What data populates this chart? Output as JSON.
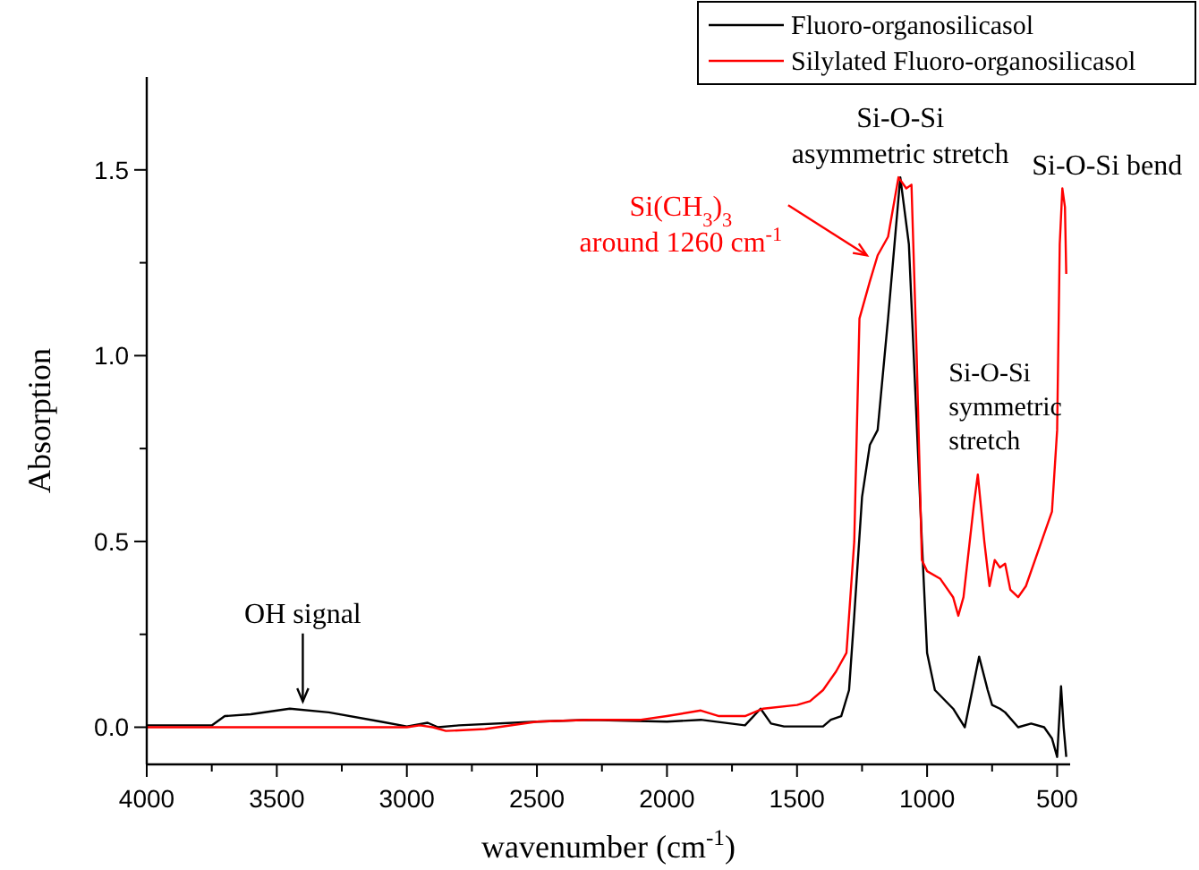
{
  "chart_data": {
    "type": "line",
    "xlabel": "wavenumber (cm$^{-1}$)",
    "ylabel": "Absorption",
    "xlim": [
      4000,
      450
    ],
    "ylim": [
      -0.1,
      1.75
    ],
    "xticks": [
      4000,
      {
        "value": 3750,
        "label": null
      },
      3500,
      {
        "value": 3250,
        "label": null
      },
      3000,
      {
        "value": 2750,
        "label": null
      },
      2500,
      {
        "value": 2250,
        "label": null
      },
      2000,
      {
        "value": 1750,
        "label": null
      },
      1500,
      {
        "value": 1250,
        "label": null
      },
      1000,
      {
        "value": 750,
        "label": null
      },
      500
    ],
    "yticks": [
      {
        "value": 0,
        "label": "0.0"
      },
      {
        "value": 0.25,
        "label": null
      },
      {
        "value": 0.5,
        "label": "0.5"
      },
      {
        "value": 0.75,
        "label": null
      },
      {
        "value": 1,
        "label": "1.0"
      },
      {
        "value": 1.25,
        "label": null
      },
      {
        "value": 1.5,
        "label": "1.5"
      }
    ],
    "legend": "top right",
    "grid": false,
    "marker": "none",
    "line_style": "solid",
    "series": [
      {
        "name": "Fluoro-organosilicasol",
        "color": "#000000",
        "x": [
          4000,
          3750,
          3700,
          3600,
          3450,
          3300,
          3100,
          3000,
          2920,
          2880,
          2800,
          2500,
          2300,
          2000,
          1870,
          1700,
          1640,
          1600,
          1550,
          1400,
          1370,
          1330,
          1300,
          1280,
          1250,
          1220,
          1190,
          1150,
          1103,
          1070,
          1045,
          1020,
          1000,
          970,
          900,
          855,
          800,
          767,
          750,
          720,
          700,
          650,
          600,
          550,
          520,
          500,
          485,
          475,
          465
        ],
        "values": [
          0.005,
          0.005,
          0.03,
          0.035,
          0.05,
          0.04,
          0.015,
          0.002,
          0.012,
          0.0,
          0.005,
          0.015,
          0.02,
          0.015,
          0.02,
          0.005,
          0.05,
          0.01,
          0.002,
          0.002,
          0.02,
          0.03,
          0.1,
          0.3,
          0.62,
          0.76,
          0.8,
          1.1,
          1.48,
          1.3,
          0.9,
          0.5,
          0.2,
          0.1,
          0.05,
          0.0,
          0.19,
          0.1,
          0.06,
          0.05,
          0.04,
          0.0,
          0.01,
          0.0,
          -0.03,
          -0.08,
          0.11,
          0.0,
          -0.08
        ]
      },
      {
        "name": "Silylated Fluoro-organosilicasol",
        "color": "#ff0000",
        "x": [
          4000,
          3000,
          2950,
          2900,
          2850,
          2700,
          2500,
          2300,
          2100,
          2000,
          1870,
          1800,
          1700,
          1630,
          1500,
          1450,
          1400,
          1350,
          1310,
          1280,
          1260,
          1220,
          1190,
          1150,
          1110,
          1080,
          1060,
          1040,
          1020,
          1000,
          950,
          900,
          880,
          860,
          820,
          805,
          780,
          760,
          740,
          720,
          700,
          680,
          650,
          620,
          560,
          520,
          500,
          490,
          480,
          470,
          465
        ],
        "values": [
          0.0,
          0.0,
          0.005,
          0.0,
          -0.01,
          -0.005,
          0.015,
          0.02,
          0.02,
          0.03,
          0.045,
          0.03,
          0.03,
          0.05,
          0.06,
          0.07,
          0.1,
          0.15,
          0.2,
          0.5,
          1.1,
          1.2,
          1.27,
          1.32,
          1.48,
          1.45,
          1.46,
          1.0,
          0.45,
          0.42,
          0.4,
          0.35,
          0.3,
          0.35,
          0.6,
          0.68,
          0.5,
          0.38,
          0.45,
          0.43,
          0.44,
          0.37,
          0.35,
          0.38,
          0.5,
          0.58,
          0.8,
          1.3,
          1.45,
          1.4,
          1.22
        ]
      }
    ],
    "annotations": [
      {
        "text": "OH signal",
        "x": 3400,
        "y": 0.05
      },
      {
        "text": "Si(CH$_{3}$)$_{3}$\naround 1260 cm$^{-1}$",
        "x": 1190,
        "y": 1.27
      },
      {
        "text": "Si-O-Si\nasymmetric stretch",
        "x": 1103,
        "y": 1.48
      },
      {
        "text": "Si-O-Si\nsymmetric\nstretch",
        "x": 800,
        "y": 0.68
      },
      {
        "text": "Si-O-Si bend",
        "x": 480,
        "y": 1.45
      }
    ]
  }
}
